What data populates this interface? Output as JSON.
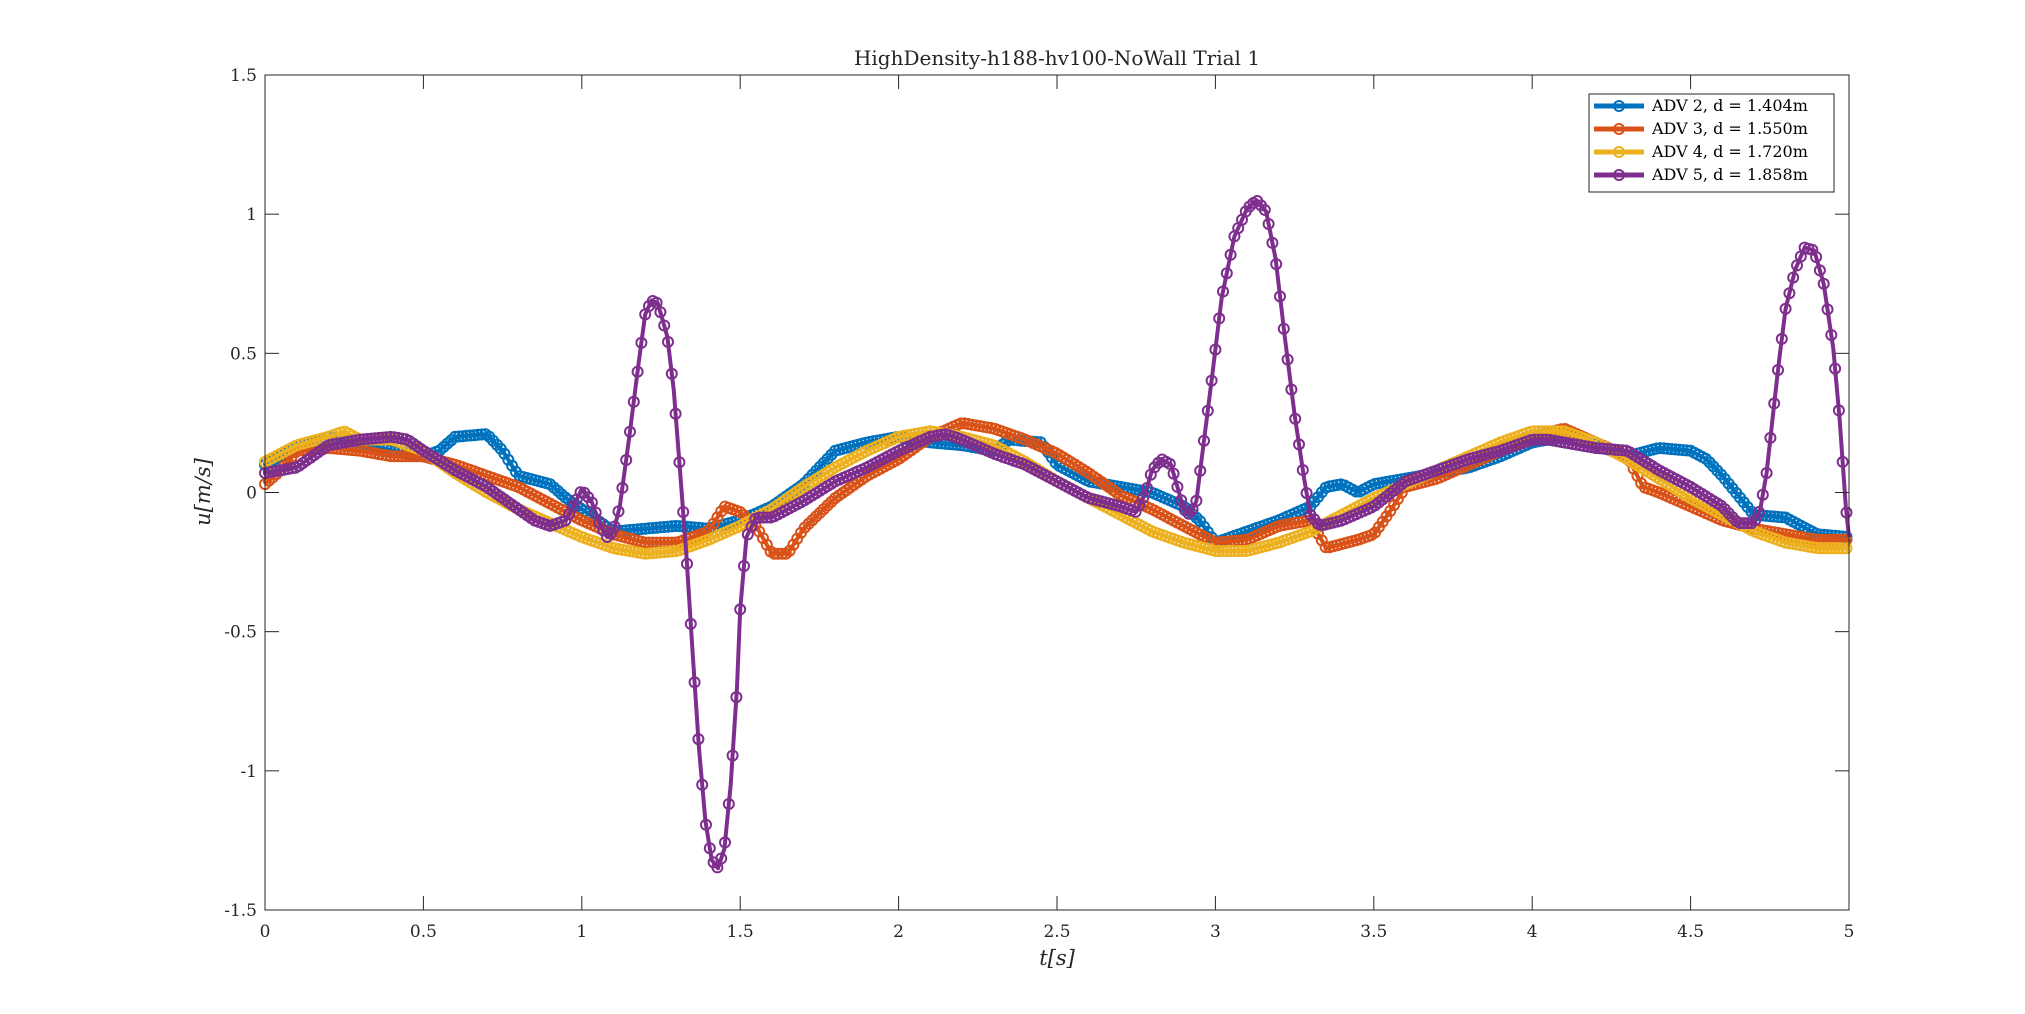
{
  "chart_data": {
    "type": "line",
    "title": "HighDensity-h188-hv100-NoWall Trial 1",
    "xlabel": "t[s]",
    "ylabel": "u[m/s]",
    "xlim": [
      0,
      5
    ],
    "ylim": [
      -1.5,
      1.5
    ],
    "xticks": [
      0,
      0.5,
      1,
      1.5,
      2,
      2.5,
      3,
      3.5,
      4,
      4.5,
      5
    ],
    "xtick_labels": [
      "0",
      "0.5",
      "1",
      "1.5",
      "2",
      "2.5",
      "3",
      "3.5",
      "4",
      "4.5",
      "5"
    ],
    "yticks": [
      -1.5,
      -1,
      -0.5,
      0,
      0.5,
      1,
      1.5
    ],
    "ytick_labels": [
      "-1.5",
      "-1",
      "-0.5",
      "0",
      "0.5",
      "1",
      "1.5"
    ],
    "grid": false,
    "legend_position": "top-right",
    "series": [
      {
        "name": "ADV 2, d = 1.404m",
        "color": "#0072BD",
        "points": [
          [
            0,
            0.1
          ],
          [
            0.1,
            0.16
          ],
          [
            0.2,
            0.2
          ],
          [
            0.3,
            0.18
          ],
          [
            0.4,
            0.15
          ],
          [
            0.5,
            0.13
          ],
          [
            0.55,
            0.15
          ],
          [
            0.6,
            0.2
          ],
          [
            0.7,
            0.21
          ],
          [
            0.75,
            0.15
          ],
          [
            0.8,
            0.06
          ],
          [
            0.9,
            0.03
          ],
          [
            0.95,
            -0.02
          ],
          [
            1.0,
            -0.06
          ],
          [
            1.1,
            -0.14
          ],
          [
            1.2,
            -0.13
          ],
          [
            1.3,
            -0.12
          ],
          [
            1.4,
            -0.13
          ],
          [
            1.5,
            -0.1
          ],
          [
            1.6,
            -0.05
          ],
          [
            1.7,
            0.03
          ],
          [
            1.8,
            0.15
          ],
          [
            1.9,
            0.18
          ],
          [
            2.0,
            0.2
          ],
          [
            2.1,
            0.18
          ],
          [
            2.2,
            0.17
          ],
          [
            2.3,
            0.15
          ],
          [
            2.35,
            0.19
          ],
          [
            2.45,
            0.18
          ],
          [
            2.5,
            0.1
          ],
          [
            2.6,
            0.04
          ],
          [
            2.7,
            0.02
          ],
          [
            2.8,
            0.0
          ],
          [
            2.9,
            -0.05
          ],
          [
            2.95,
            -0.1
          ],
          [
            3.0,
            -0.18
          ],
          [
            3.1,
            -0.14
          ],
          [
            3.2,
            -0.1
          ],
          [
            3.3,
            -0.05
          ],
          [
            3.35,
            0.02
          ],
          [
            3.4,
            0.03
          ],
          [
            3.45,
            0.0
          ],
          [
            3.5,
            0.03
          ],
          [
            3.6,
            0.05
          ],
          [
            3.7,
            0.07
          ],
          [
            3.8,
            0.09
          ],
          [
            3.9,
            0.13
          ],
          [
            4.0,
            0.18
          ],
          [
            4.1,
            0.2
          ],
          [
            4.2,
            0.17
          ],
          [
            4.3,
            0.13
          ],
          [
            4.4,
            0.16
          ],
          [
            4.5,
            0.15
          ],
          [
            4.55,
            0.12
          ],
          [
            4.6,
            0.06
          ],
          [
            4.7,
            -0.08
          ],
          [
            4.8,
            -0.09
          ],
          [
            4.9,
            -0.15
          ],
          [
            5.0,
            -0.16
          ]
        ]
      },
      {
        "name": "ADV 3, d = 1.550m",
        "color": "#D95319",
        "points": [
          [
            0,
            0.03
          ],
          [
            0.05,
            0.08
          ],
          [
            0.1,
            0.15
          ],
          [
            0.2,
            0.16
          ],
          [
            0.3,
            0.15
          ],
          [
            0.4,
            0.13
          ],
          [
            0.5,
            0.13
          ],
          [
            0.6,
            0.1
          ],
          [
            0.7,
            0.06
          ],
          [
            0.8,
            0.02
          ],
          [
            0.9,
            -0.04
          ],
          [
            1.0,
            -0.1
          ],
          [
            1.1,
            -0.15
          ],
          [
            1.2,
            -0.18
          ],
          [
            1.3,
            -0.18
          ],
          [
            1.4,
            -0.14
          ],
          [
            1.45,
            -0.05
          ],
          [
            1.5,
            -0.07
          ],
          [
            1.55,
            -0.12
          ],
          [
            1.6,
            -0.22
          ],
          [
            1.65,
            -0.22
          ],
          [
            1.7,
            -0.13
          ],
          [
            1.8,
            -0.02
          ],
          [
            1.9,
            0.06
          ],
          [
            2.0,
            0.12
          ],
          [
            2.1,
            0.2
          ],
          [
            2.2,
            0.25
          ],
          [
            2.3,
            0.23
          ],
          [
            2.4,
            0.19
          ],
          [
            2.5,
            0.14
          ],
          [
            2.6,
            0.07
          ],
          [
            2.7,
            -0.01
          ],
          [
            2.8,
            -0.06
          ],
          [
            2.9,
            -0.12
          ],
          [
            3.0,
            -0.18
          ],
          [
            3.1,
            -0.17
          ],
          [
            3.2,
            -0.12
          ],
          [
            3.3,
            -0.1
          ],
          [
            3.35,
            -0.2
          ],
          [
            3.45,
            -0.17
          ],
          [
            3.5,
            -0.15
          ],
          [
            3.55,
            -0.07
          ],
          [
            3.6,
            0.02
          ],
          [
            3.7,
            0.05
          ],
          [
            3.8,
            0.1
          ],
          [
            3.9,
            0.15
          ],
          [
            4.0,
            0.2
          ],
          [
            4.1,
            0.23
          ],
          [
            4.2,
            0.18
          ],
          [
            4.3,
            0.13
          ],
          [
            4.35,
            0.02
          ],
          [
            4.4,
            0.0
          ],
          [
            4.5,
            -0.05
          ],
          [
            4.6,
            -0.1
          ],
          [
            4.7,
            -0.13
          ],
          [
            4.8,
            -0.15
          ],
          [
            4.9,
            -0.17
          ],
          [
            5.0,
            -0.17
          ]
        ]
      },
      {
        "name": "ADV 4, d = 1.720m",
        "color": "#EDB120",
        "points": [
          [
            0,
            0.11
          ],
          [
            0.1,
            0.17
          ],
          [
            0.2,
            0.2
          ],
          [
            0.25,
            0.22
          ],
          [
            0.3,
            0.19
          ],
          [
            0.4,
            0.19
          ],
          [
            0.5,
            0.15
          ],
          [
            0.6,
            0.07
          ],
          [
            0.7,
            0.0
          ],
          [
            0.8,
            -0.06
          ],
          [
            0.9,
            -0.11
          ],
          [
            1.0,
            -0.16
          ],
          [
            1.1,
            -0.2
          ],
          [
            1.2,
            -0.22
          ],
          [
            1.3,
            -0.21
          ],
          [
            1.4,
            -0.17
          ],
          [
            1.5,
            -0.12
          ],
          [
            1.6,
            -0.06
          ],
          [
            1.7,
            0.02
          ],
          [
            1.8,
            0.09
          ],
          [
            1.9,
            0.15
          ],
          [
            2.0,
            0.2
          ],
          [
            2.1,
            0.22
          ],
          [
            2.2,
            0.2
          ],
          [
            2.3,
            0.17
          ],
          [
            2.4,
            0.11
          ],
          [
            2.5,
            0.04
          ],
          [
            2.6,
            -0.02
          ],
          [
            2.7,
            -0.08
          ],
          [
            2.8,
            -0.14
          ],
          [
            2.9,
            -0.18
          ],
          [
            3.0,
            -0.21
          ],
          [
            3.1,
            -0.21
          ],
          [
            3.2,
            -0.18
          ],
          [
            3.3,
            -0.14
          ],
          [
            3.4,
            -0.08
          ],
          [
            3.5,
            -0.02
          ],
          [
            3.6,
            0.03
          ],
          [
            3.7,
            0.08
          ],
          [
            3.8,
            0.13
          ],
          [
            3.9,
            0.18
          ],
          [
            4.0,
            0.22
          ],
          [
            4.1,
            0.22
          ],
          [
            4.2,
            0.18
          ],
          [
            4.3,
            0.12
          ],
          [
            4.4,
            0.05
          ],
          [
            4.5,
            -0.02
          ],
          [
            4.6,
            -0.08
          ],
          [
            4.7,
            -0.14
          ],
          [
            4.8,
            -0.18
          ],
          [
            4.9,
            -0.2
          ],
          [
            5.0,
            -0.2
          ]
        ]
      },
      {
        "name": "ADV 5, d = 1.858m",
        "color": "#7E2F8E",
        "points": [
          [
            0,
            0.07
          ],
          [
            0.1,
            0.09
          ],
          [
            0.15,
            0.13
          ],
          [
            0.2,
            0.17
          ],
          [
            0.3,
            0.19
          ],
          [
            0.4,
            0.2
          ],
          [
            0.45,
            0.19
          ],
          [
            0.5,
            0.15
          ],
          [
            0.6,
            0.08
          ],
          [
            0.7,
            0.02
          ],
          [
            0.75,
            -0.02
          ],
          [
            0.8,
            -0.06
          ],
          [
            0.85,
            -0.1
          ],
          [
            0.9,
            -0.12
          ],
          [
            0.95,
            -0.1
          ],
          [
            1.0,
            0.01
          ],
          [
            1.03,
            -0.03
          ],
          [
            1.06,
            -0.12
          ],
          [
            1.08,
            -0.16
          ],
          [
            1.1,
            -0.14
          ],
          [
            1.12,
            -0.05
          ],
          [
            1.15,
            0.2
          ],
          [
            1.18,
            0.47
          ],
          [
            1.2,
            0.64
          ],
          [
            1.22,
            0.69
          ],
          [
            1.24,
            0.68
          ],
          [
            1.27,
            0.56
          ],
          [
            1.29,
            0.37
          ],
          [
            1.31,
            0.08
          ],
          [
            1.33,
            -0.22
          ],
          [
            1.35,
            -0.58
          ],
          [
            1.37,
            -0.92
          ],
          [
            1.39,
            -1.18
          ],
          [
            1.41,
            -1.32
          ],
          [
            1.43,
            -1.35
          ],
          [
            1.45,
            -1.28
          ],
          [
            1.47,
            -1.05
          ],
          [
            1.49,
            -0.7
          ],
          [
            1.5,
            -0.42
          ],
          [
            1.52,
            -0.16
          ],
          [
            1.55,
            -0.09
          ],
          [
            1.6,
            -0.09
          ],
          [
            1.7,
            -0.03
          ],
          [
            1.8,
            0.04
          ],
          [
            1.9,
            0.09
          ],
          [
            2.0,
            0.15
          ],
          [
            2.1,
            0.2
          ],
          [
            2.15,
            0.21
          ],
          [
            2.2,
            0.19
          ],
          [
            2.3,
            0.14
          ],
          [
            2.4,
            0.1
          ],
          [
            2.5,
            0.04
          ],
          [
            2.6,
            -0.02
          ],
          [
            2.7,
            -0.05
          ],
          [
            2.75,
            -0.07
          ],
          [
            2.78,
            0.0
          ],
          [
            2.8,
            0.08
          ],
          [
            2.83,
            0.12
          ],
          [
            2.86,
            0.1
          ],
          [
            2.88,
            0.02
          ],
          [
            2.9,
            -0.06
          ],
          [
            2.92,
            -0.08
          ],
          [
            2.94,
            -0.03
          ],
          [
            2.96,
            0.15
          ],
          [
            2.99,
            0.42
          ],
          [
            3.02,
            0.7
          ],
          [
            3.06,
            0.92
          ],
          [
            3.1,
            1.02
          ],
          [
            3.13,
            1.05
          ],
          [
            3.16,
            1.01
          ],
          [
            3.19,
            0.84
          ],
          [
            3.22,
            0.55
          ],
          [
            3.25,
            0.28
          ],
          [
            3.28,
            0.05
          ],
          [
            3.3,
            -0.08
          ],
          [
            3.33,
            -0.12
          ],
          [
            3.4,
            -0.1
          ],
          [
            3.5,
            -0.05
          ],
          [
            3.6,
            0.04
          ],
          [
            3.7,
            0.08
          ],
          [
            3.8,
            0.12
          ],
          [
            3.9,
            0.15
          ],
          [
            4.0,
            0.19
          ],
          [
            4.05,
            0.19
          ],
          [
            4.1,
            0.18
          ],
          [
            4.2,
            0.16
          ],
          [
            4.3,
            0.15
          ],
          [
            4.4,
            0.08
          ],
          [
            4.5,
            0.02
          ],
          [
            4.6,
            -0.05
          ],
          [
            4.65,
            -0.11
          ],
          [
            4.7,
            -0.11
          ],
          [
            4.72,
            -0.06
          ],
          [
            4.74,
            0.07
          ],
          [
            4.76,
            0.28
          ],
          [
            4.78,
            0.48
          ],
          [
            4.8,
            0.66
          ],
          [
            4.83,
            0.8
          ],
          [
            4.86,
            0.88
          ],
          [
            4.89,
            0.87
          ],
          [
            4.92,
            0.75
          ],
          [
            4.95,
            0.52
          ],
          [
            4.97,
            0.27
          ],
          [
            4.99,
            -0.05
          ],
          [
            5.0,
            -0.16
          ]
        ]
      }
    ]
  }
}
